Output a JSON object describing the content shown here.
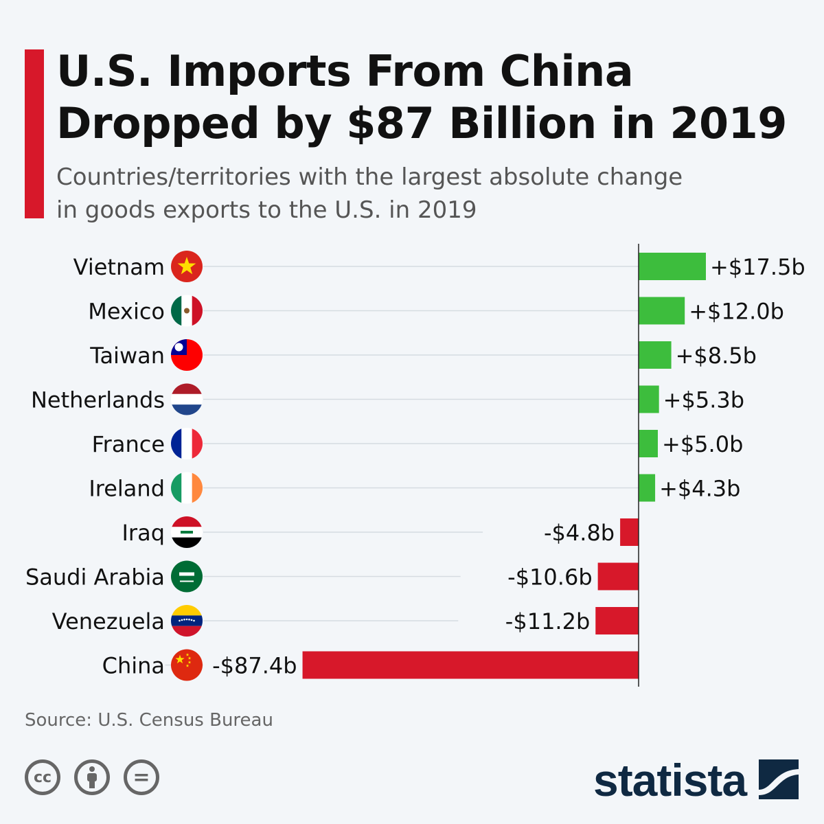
{
  "title_line1": "U.S. Imports From China",
  "title_line2": "Dropped by $87 Billion in 2019",
  "subtitle_line1": "Countries/territories with the largest absolute change",
  "subtitle_line2": "in goods exports to the U.S. in 2019",
  "source": "Source: U.S. Census Bureau",
  "brand": "statista",
  "license_icons": [
    "creative-commons-icon",
    "attribution-icon",
    "no-derivatives-icon"
  ],
  "cc_text": "cc",
  "nd_text": "=",
  "colors": {
    "positive": "#3dbd3d",
    "negative": "#d7182a",
    "accent": "#d7182a",
    "brand": "#0f2942"
  },
  "chart_data": {
    "type": "bar",
    "orientation": "horizontal",
    "unit": "billion USD",
    "grid": false,
    "categories": [
      "Vietnam",
      "Mexico",
      "Taiwan",
      "Netherlands",
      "France",
      "Ireland",
      "Iraq",
      "Saudi Arabia",
      "Venezuela",
      "China"
    ],
    "flags": [
      "vietnam-flag-icon",
      "mexico-flag-icon",
      "taiwan-flag-icon",
      "netherlands-flag-icon",
      "france-flag-icon",
      "ireland-flag-icon",
      "iraq-flag-icon",
      "saudi-arabia-flag-icon",
      "venezuela-flag-icon",
      "china-flag-icon"
    ],
    "values": [
      17.5,
      12.0,
      8.5,
      5.3,
      5.0,
      4.3,
      -4.8,
      -10.6,
      -11.2,
      -87.4
    ],
    "labels": [
      "+$17.5b",
      "+$12.0b",
      "+$8.5b",
      "+$5.3b",
      "+$5.0b",
      "+$4.3b",
      "-$4.8b",
      "-$10.6b",
      "-$11.2b",
      "-$87.4b"
    ]
  }
}
